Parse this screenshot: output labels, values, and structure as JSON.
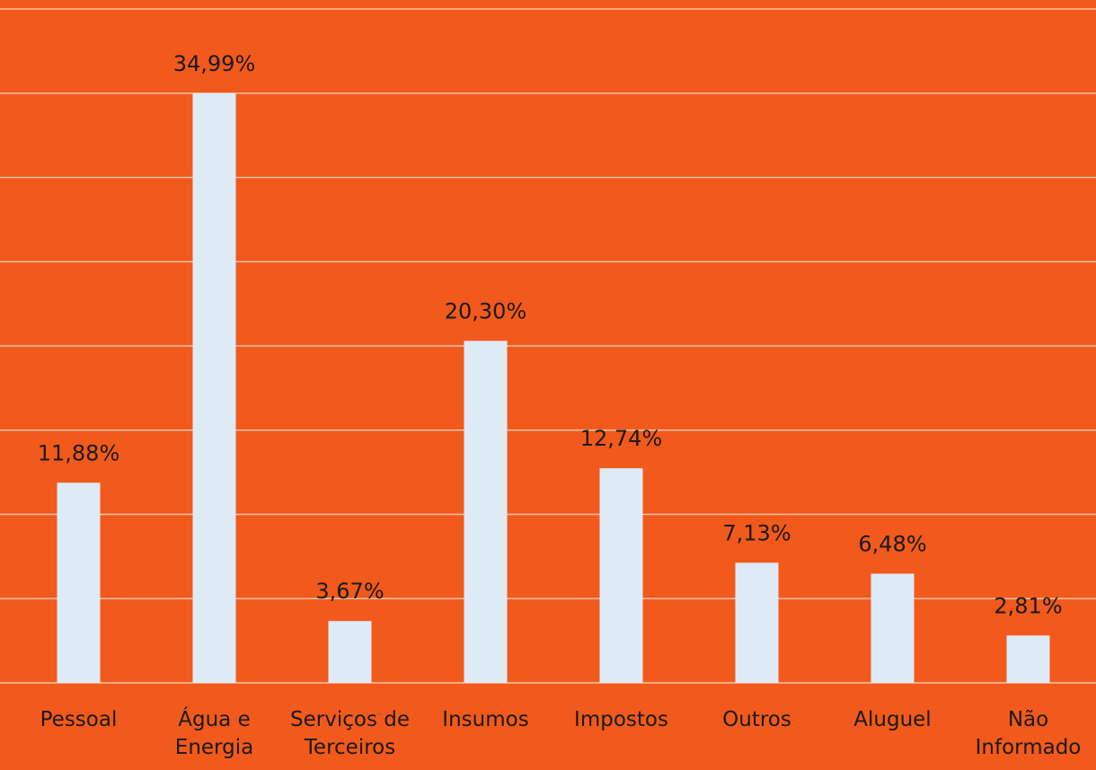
{
  "chart_data": {
    "type": "bar",
    "categories": [
      "Pessoal",
      "Água e\nEnergia",
      "Serviços de\nTerceiros",
      "Insumos",
      "Impostos",
      "Outros",
      "Aluguel",
      "Não\nInformado"
    ],
    "values": [
      11.88,
      34.99,
      3.67,
      20.3,
      12.74,
      7.13,
      6.48,
      2.81
    ],
    "value_labels": [
      "11,88%",
      "34,99%",
      "3,67%",
      "20,30%",
      "12,74%",
      "7,13%",
      "6,48%",
      "2,81%"
    ],
    "color": "#deebf7",
    "ylim": [
      0,
      40
    ],
    "yticks": [
      0,
      5,
      10,
      15,
      20,
      25,
      30,
      35,
      40
    ],
    "grid": true
  }
}
